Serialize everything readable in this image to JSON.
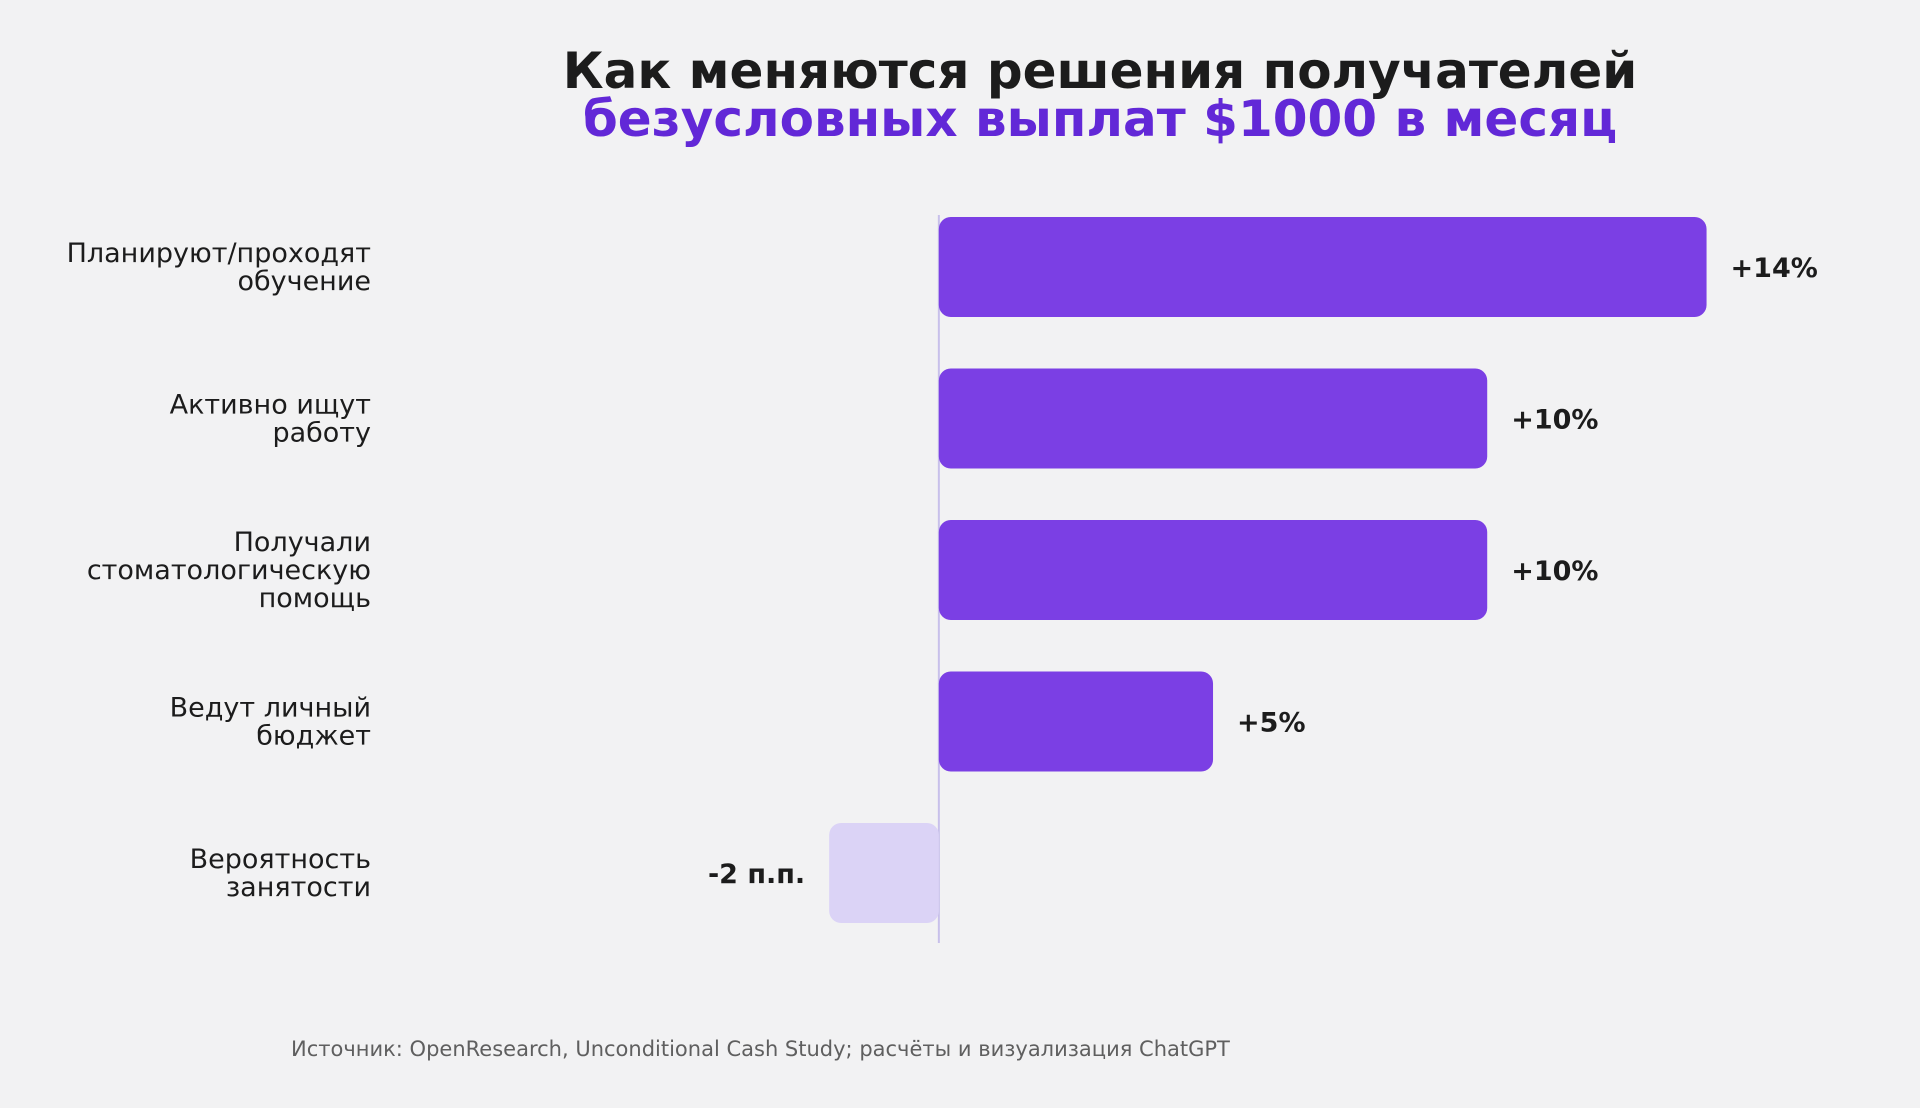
{
  "chart_data": {
    "type": "bar",
    "orientation": "horizontal",
    "title": "Как меняются решения получателей",
    "subtitle": "безусловных выплат $1000 в месяц",
    "categories": [
      [
        "Планируют/проходят",
        "обучение"
      ],
      [
        "Активно ищут",
        "работу"
      ],
      [
        "Получали",
        "стоматологическую",
        "помощь"
      ],
      [
        "Ведут личный",
        "бюджет"
      ],
      [
        "Вероятность",
        "занятости"
      ]
    ],
    "values": [
      14,
      10,
      10,
      5,
      -2
    ],
    "value_labels": [
      "+14%",
      "+10%",
      "+10%",
      "+5%",
      "-2 п.п."
    ],
    "xlim": [
      -7,
      17.4
    ],
    "grid": false,
    "legend": "none",
    "colors": {
      "positive": "#7b3fe4",
      "negative": "#dbd3f6",
      "zero_line": "#c8c0ea",
      "label": "#1c1c1c"
    }
  },
  "source": "Источник: OpenResearch, Unconditional Cash Study; расчёты и визуализация ChatGPT"
}
